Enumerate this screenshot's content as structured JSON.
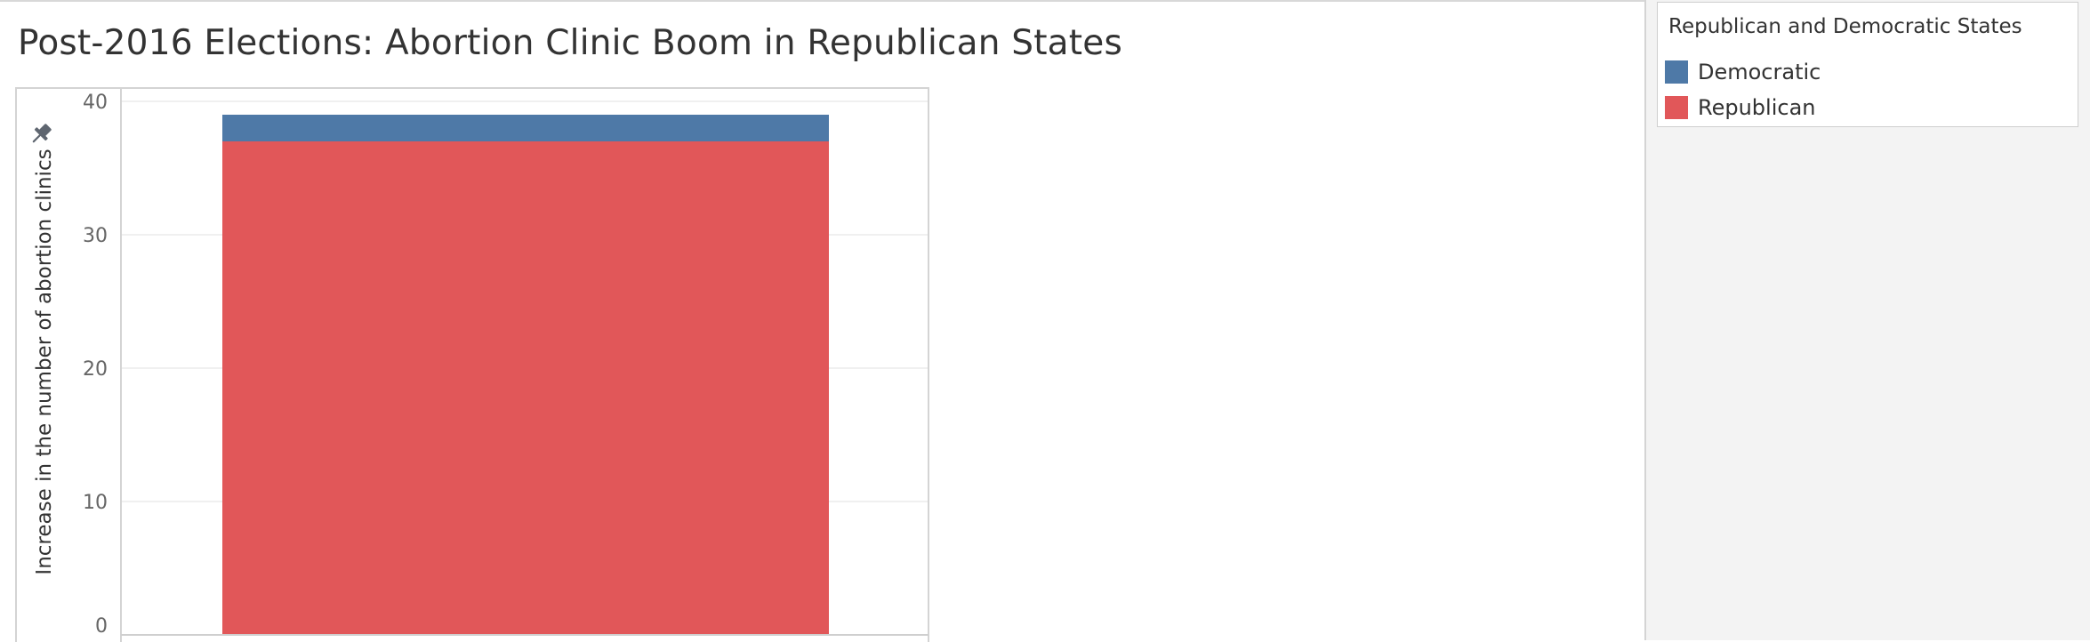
{
  "title": "Post-2016 Elections: Abortion Clinic Boom in Republican States",
  "legend": {
    "title": "Republican and Democratic States",
    "items": [
      {
        "label": "Democratic",
        "color": "#4e79a7"
      },
      {
        "label": "Republican",
        "color": "#e15759"
      }
    ]
  },
  "chart_data": {
    "type": "bar",
    "stacked": true,
    "categories": [
      ""
    ],
    "series": [
      {
        "name": "Republican",
        "values": [
          37
        ],
        "color": "#e15759"
      },
      {
        "name": "Democratic",
        "values": [
          2
        ],
        "color": "#4e79a7"
      }
    ],
    "ylabel": "Increase in the number of abortion clinics",
    "ylim": [
      0,
      40
    ],
    "yticks": [
      0,
      10,
      20,
      30,
      40
    ],
    "grid": true,
    "legend_position": "right"
  },
  "icons": {
    "pin": "pin-icon"
  }
}
